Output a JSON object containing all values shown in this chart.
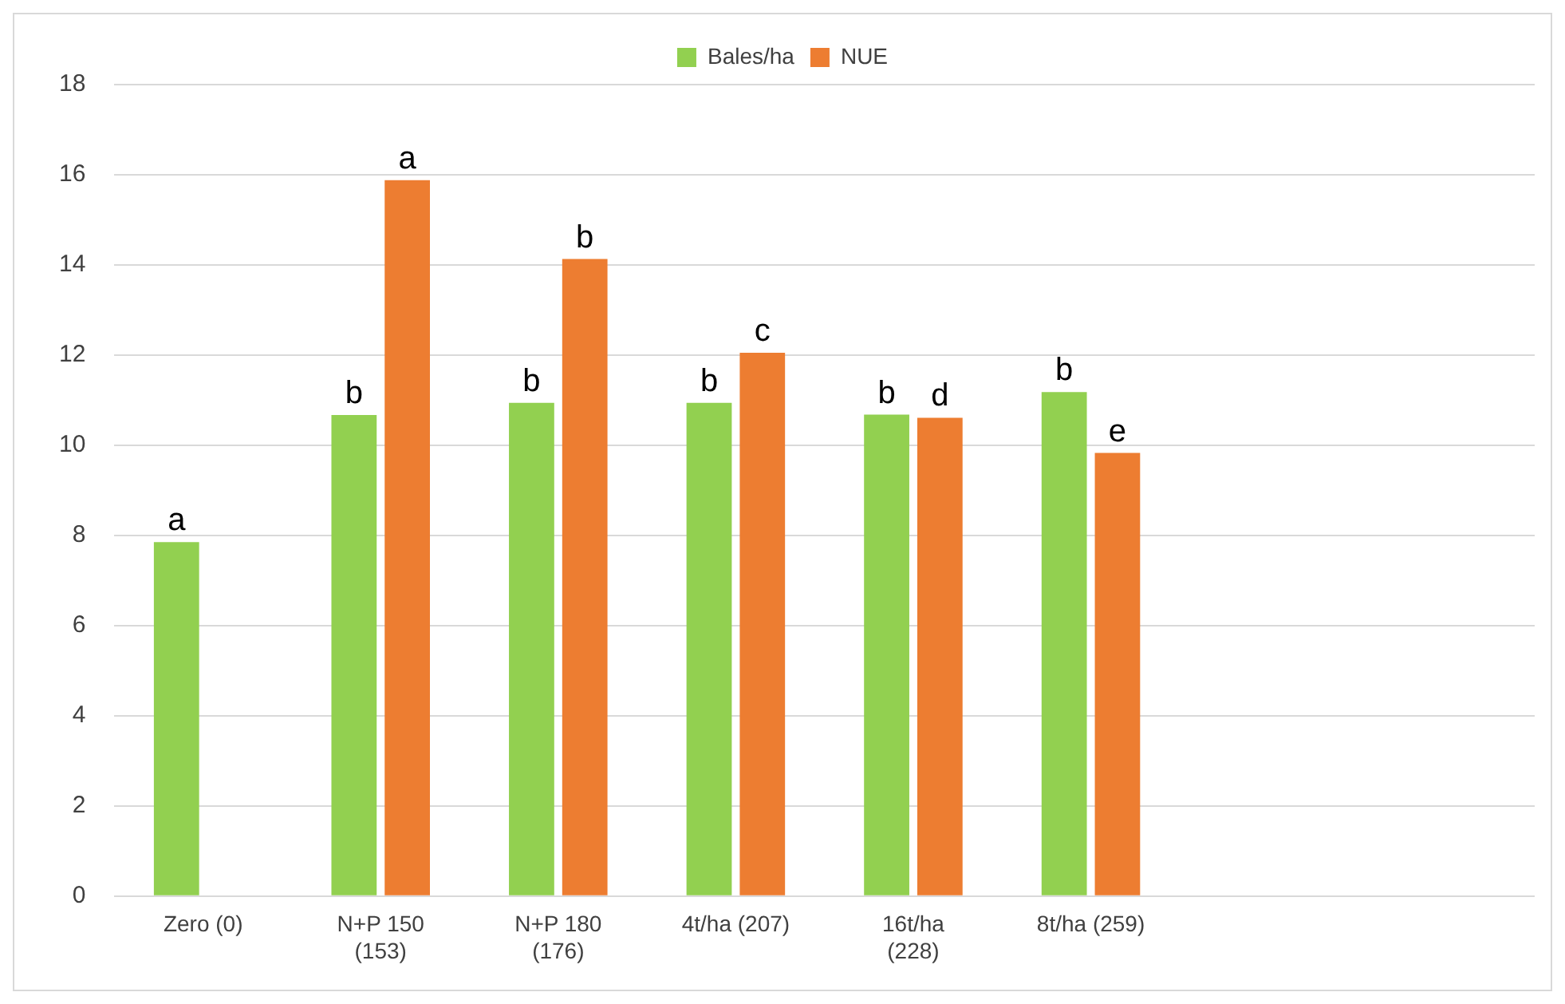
{
  "chart_data": {
    "type": "bar",
    "categories": [
      "Zero (0)",
      "N+P 150 (153)",
      "N+P 180 (176)",
      "4t/ha (207)",
      "16t/ha (228)",
      "8t/ha (259)",
      null,
      null
    ],
    "series": [
      {
        "name": "Bales/ha",
        "color": "#92d050",
        "values": [
          7.85,
          10.67,
          10.94,
          10.94,
          10.68,
          11.18,
          null,
          null
        ],
        "value_labels": [
          "a",
          "b",
          "b",
          "b",
          "b",
          "b",
          null,
          null
        ]
      },
      {
        "name": "NUE",
        "color": "#ed7d31",
        "values": [
          null,
          15.88,
          14.13,
          12.05,
          10.61,
          9.83,
          null,
          null
        ],
        "value_labels": [
          null,
          "a",
          "b",
          "c",
          "d",
          "e",
          null,
          null
        ]
      }
    ],
    "ylim": [
      0,
      18
    ],
    "yticks": [
      0,
      2,
      4,
      6,
      8,
      10,
      12,
      14,
      16,
      18
    ],
    "grid": "y",
    "legend": "top"
  }
}
